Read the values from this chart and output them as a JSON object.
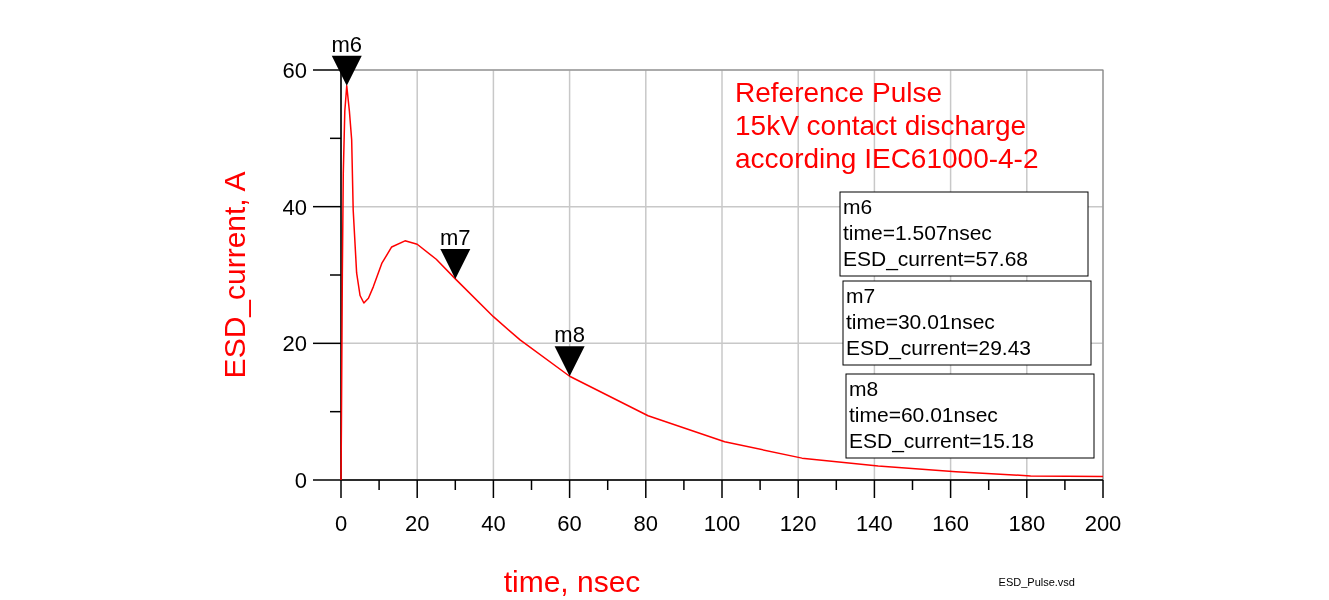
{
  "chart_data": {
    "type": "line",
    "xlabel": "time, nsec",
    "ylabel": "ESD_current, A",
    "x": [
      0,
      0.1,
      0.35,
      0.6,
      1.0,
      1.507,
      2.2,
      2.8,
      3.2,
      4.1,
      5.0,
      6.0,
      7.2,
      8.5,
      10.7,
      13.3,
      16.8,
      20,
      25,
      30.01,
      40,
      47,
      60.01,
      80.6,
      100.7,
      121,
      141,
      161.4,
      181,
      200
    ],
    "series": [
      {
        "color": "#ff0000",
        "values": [
          0,
          7.3,
          30,
          44.9,
          54,
          57.68,
          54,
          49.8,
          39.5,
          30.3,
          27,
          25.9,
          26.6,
          28.3,
          31.7,
          34.1,
          35.0,
          34.5,
          32.3,
          29.43,
          23.9,
          20.5,
          15.18,
          9.4,
          5.6,
          3.2,
          2.05,
          1.2,
          0.6,
          0.5
        ]
      }
    ],
    "xlim": [
      0,
      200
    ],
    "ylim": [
      0,
      60
    ],
    "xticks": [
      0,
      {
        "value": 10,
        "label": null
      },
      20,
      {
        "value": 30,
        "label": null
      },
      40,
      {
        "value": 50,
        "label": null
      },
      60,
      {
        "value": 70,
        "label": null
      },
      80,
      {
        "value": 90,
        "label": null
      },
      100,
      {
        "value": 110,
        "label": null
      },
      120,
      {
        "value": 130,
        "label": null
      },
      140,
      {
        "value": 150,
        "label": null
      },
      160,
      {
        "value": 170,
        "label": null
      },
      180,
      {
        "value": 190,
        "label": null
      },
      200
    ],
    "yticks": [
      0,
      {
        "value": 10,
        "label": null
      },
      20,
      {
        "value": 30,
        "label": null
      },
      40,
      {
        "value": 50,
        "label": null
      },
      60
    ],
    "grid": true,
    "marker": "none",
    "line_style": "solid",
    "annotations": [
      {
        "text": "m6",
        "x": 1.507,
        "y": 57.68
      },
      {
        "text": "m7",
        "x": 30.01,
        "y": 29.43
      },
      {
        "text": "m8",
        "x": 60.01,
        "y": 15.18
      },
      "Reference Pulse\n15kV contact discharge\naccording IEC61000-4-2",
      "m6\ntime=1.507nsec\nESD_current=57.68",
      "m7\ntime=30.01nsec\nESD_current=29.43",
      "m8\ntime=60.01nsec\nESD_current=15.18",
      "ESD_Pulse.vsd"
    ]
  }
}
